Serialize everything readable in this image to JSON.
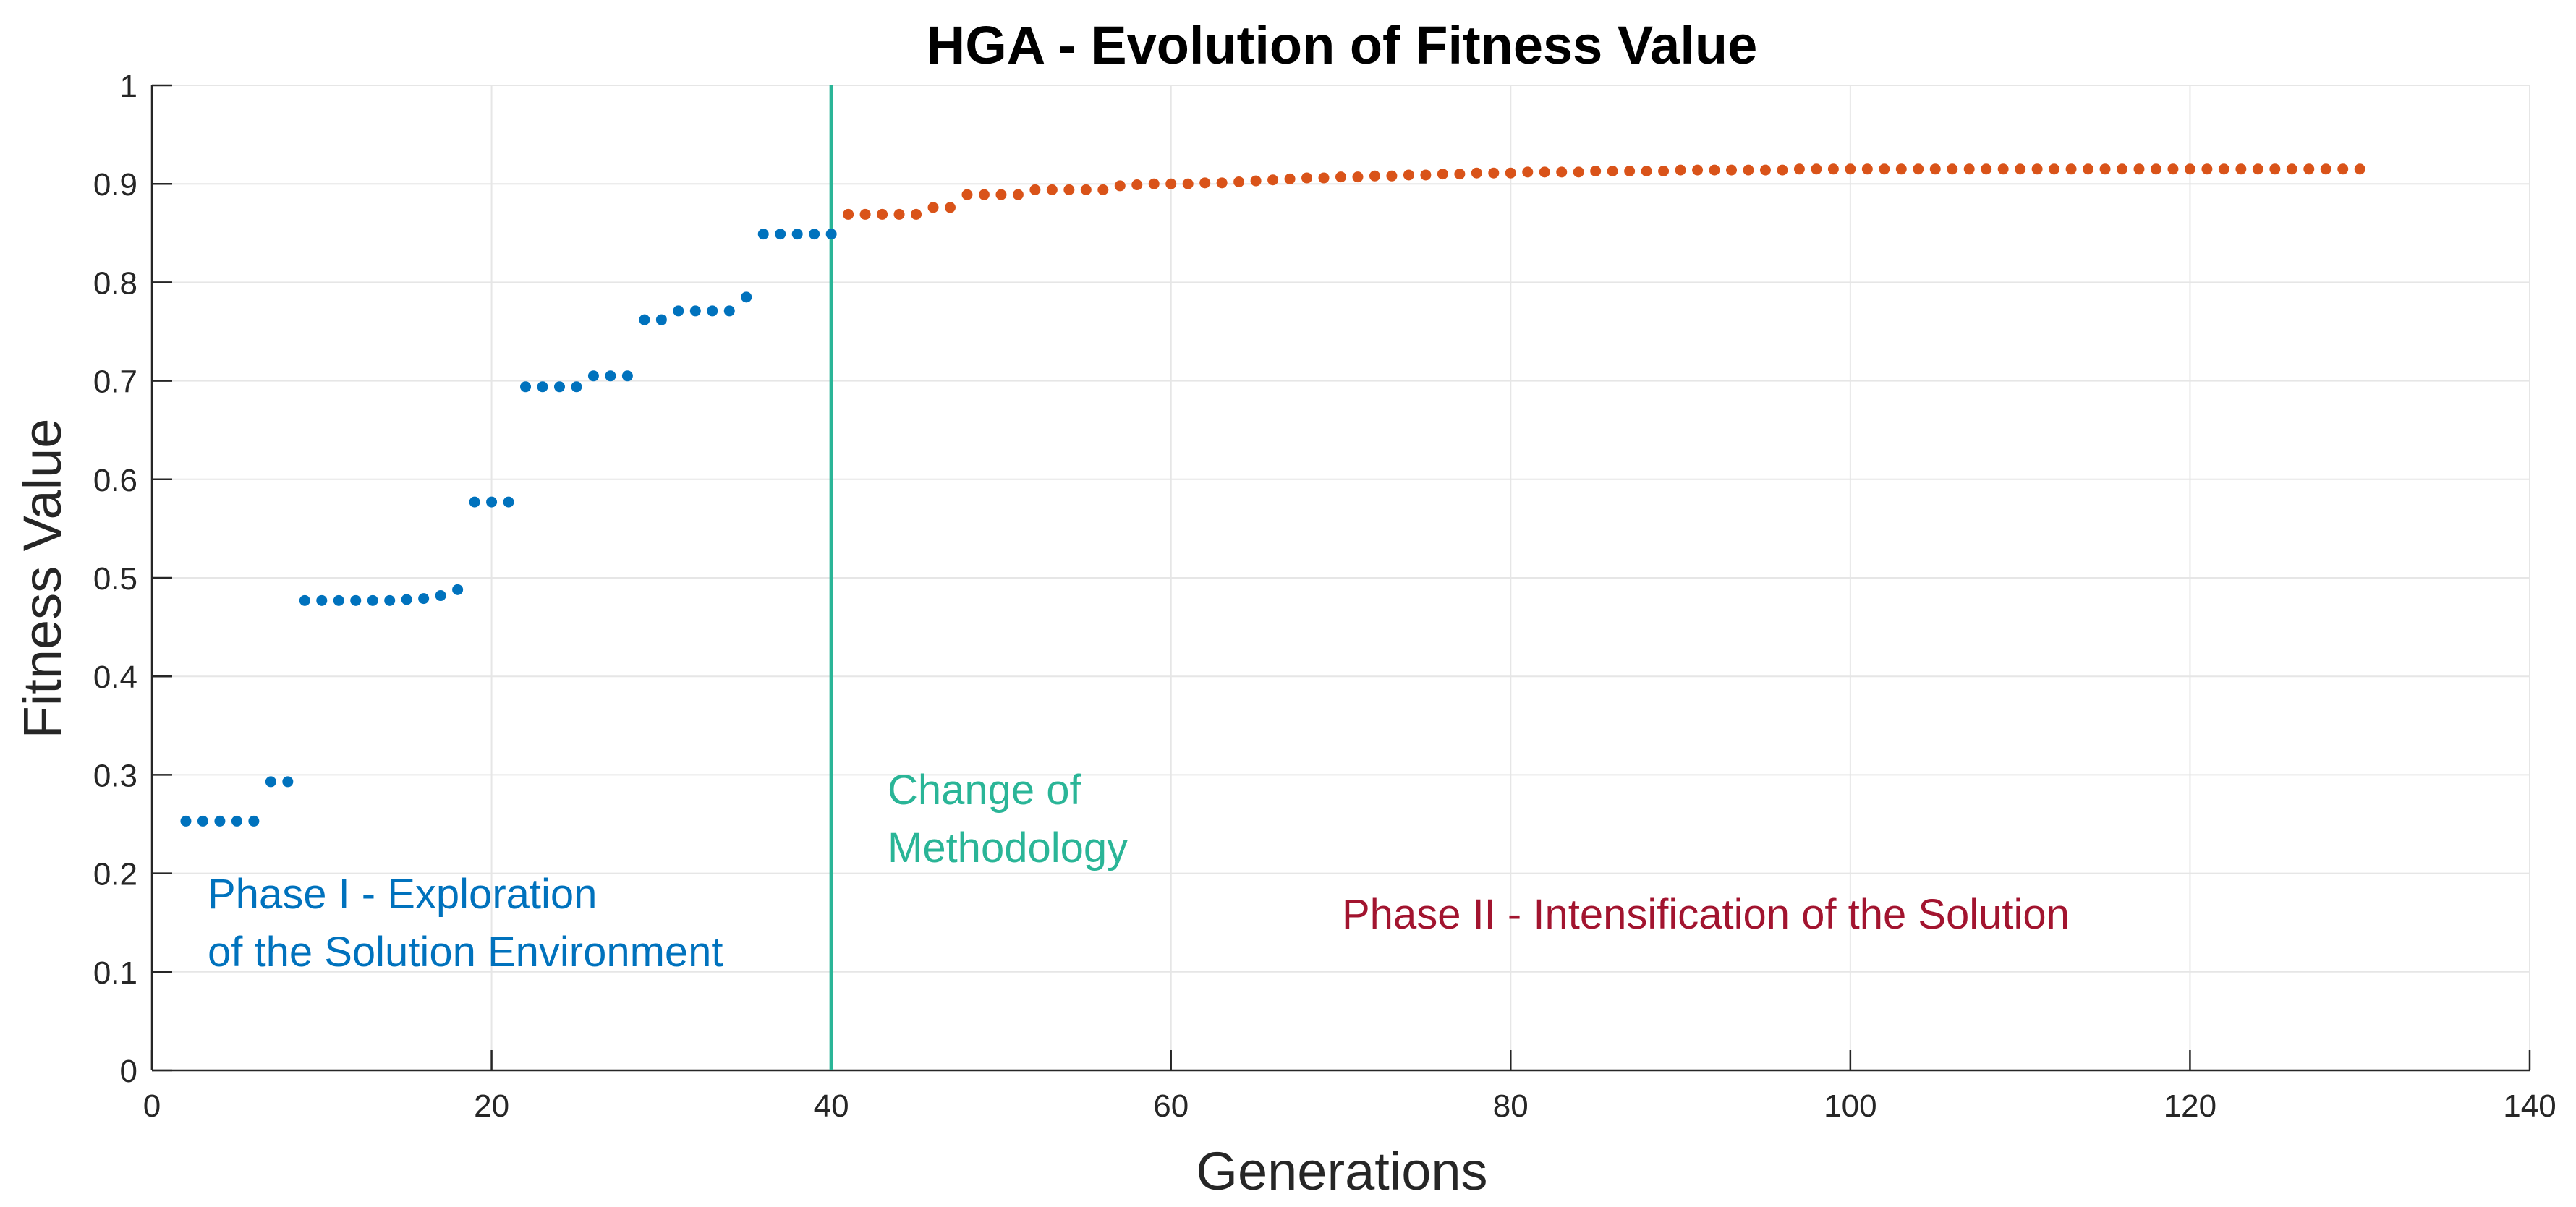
{
  "chart_data": {
    "type": "scatter",
    "title": "HGA - Evolution of Fitness Value",
    "xlabel": "Generations",
    "ylabel": "Fitness Value",
    "xlim": [
      0,
      140
    ],
    "ylim": [
      0,
      1
    ],
    "xticks": [
      "0",
      "20",
      "40",
      "60",
      "80",
      "100",
      "120",
      "140"
    ],
    "yticks": [
      "0",
      "0.1",
      "0.2",
      "0.3",
      "0.4",
      "0.5",
      "0.6",
      "0.7",
      "0.8",
      "0.9",
      "1"
    ],
    "grid": true,
    "colors": {
      "phase1": "#0072BD",
      "phase2": "#D95319",
      "divider": "#2AB597",
      "phase2_label": "#A2142F"
    },
    "series": [
      {
        "points": [
          [
            2,
            0.253
          ],
          [
            3,
            0.253
          ],
          [
            4,
            0.253
          ],
          [
            5,
            0.253
          ],
          [
            6,
            0.253
          ],
          [
            7,
            0.293
          ],
          [
            8,
            0.293
          ],
          [
            9,
            0.477
          ],
          [
            10,
            0.477
          ],
          [
            11,
            0.477
          ],
          [
            12,
            0.477
          ],
          [
            13,
            0.477
          ],
          [
            14,
            0.477
          ],
          [
            15,
            0.478
          ],
          [
            16,
            0.479
          ],
          [
            17,
            0.482
          ],
          [
            18,
            0.488
          ],
          [
            19,
            0.577
          ],
          [
            20,
            0.577
          ],
          [
            21,
            0.577
          ],
          [
            22,
            0.694
          ],
          [
            23,
            0.694
          ],
          [
            24,
            0.694
          ],
          [
            25,
            0.694
          ],
          [
            26,
            0.705
          ],
          [
            27,
            0.705
          ],
          [
            28,
            0.705
          ],
          [
            29,
            0.762
          ],
          [
            30,
            0.762
          ],
          [
            31,
            0.771
          ],
          [
            32,
            0.771
          ],
          [
            33,
            0.771
          ],
          [
            34,
            0.771
          ],
          [
            35,
            0.785
          ],
          [
            36,
            0.849
          ],
          [
            37,
            0.849
          ],
          [
            38,
            0.849
          ],
          [
            39,
            0.849
          ],
          [
            40,
            0.849
          ]
        ]
      },
      {
        "points": [
          [
            41,
            0.869
          ],
          [
            42,
            0.869
          ],
          [
            43,
            0.869
          ],
          [
            44,
            0.869
          ],
          [
            45,
            0.869
          ],
          [
            46,
            0.876
          ],
          [
            47,
            0.876
          ],
          [
            48,
            0.889
          ],
          [
            49,
            0.889
          ],
          [
            50,
            0.889
          ],
          [
            51,
            0.889
          ],
          [
            52,
            0.894
          ],
          [
            53,
            0.894
          ],
          [
            54,
            0.894
          ],
          [
            55,
            0.894
          ],
          [
            56,
            0.894
          ],
          [
            57,
            0.898
          ],
          [
            58,
            0.899
          ],
          [
            59,
            0.9
          ],
          [
            60,
            0.9
          ],
          [
            61,
            0.9
          ],
          [
            62,
            0.901
          ],
          [
            63,
            0.901
          ],
          [
            64,
            0.902
          ],
          [
            65,
            0.903
          ],
          [
            66,
            0.904
          ],
          [
            67,
            0.905
          ],
          [
            68,
            0.906
          ],
          [
            69,
            0.906
          ],
          [
            70,
            0.907
          ],
          [
            71,
            0.907
          ],
          [
            72,
            0.908
          ],
          [
            73,
            0.908
          ],
          [
            74,
            0.909
          ],
          [
            75,
            0.909
          ],
          [
            76,
            0.91
          ],
          [
            77,
            0.91
          ],
          [
            78,
            0.911
          ],
          [
            79,
            0.911
          ],
          [
            80,
            0.911
          ],
          [
            81,
            0.912
          ],
          [
            82,
            0.912
          ],
          [
            83,
            0.912
          ],
          [
            84,
            0.912
          ],
          [
            85,
            0.913
          ],
          [
            86,
            0.913
          ],
          [
            87,
            0.913
          ],
          [
            88,
            0.913
          ],
          [
            89,
            0.913
          ],
          [
            90,
            0.914
          ],
          [
            91,
            0.914
          ],
          [
            92,
            0.914
          ],
          [
            93,
            0.914
          ],
          [
            94,
            0.914
          ],
          [
            95,
            0.914
          ],
          [
            96,
            0.914
          ],
          [
            97,
            0.915
          ],
          [
            98,
            0.915
          ],
          [
            99,
            0.915
          ],
          [
            100,
            0.915
          ],
          [
            101,
            0.915
          ],
          [
            102,
            0.915
          ],
          [
            103,
            0.915
          ],
          [
            104,
            0.915
          ],
          [
            105,
            0.915
          ],
          [
            106,
            0.915
          ],
          [
            107,
            0.915
          ],
          [
            108,
            0.915
          ],
          [
            109,
            0.915
          ],
          [
            110,
            0.915
          ],
          [
            111,
            0.915
          ],
          [
            112,
            0.915
          ],
          [
            113,
            0.915
          ],
          [
            114,
            0.915
          ],
          [
            115,
            0.915
          ],
          [
            116,
            0.915
          ],
          [
            117,
            0.915
          ],
          [
            118,
            0.915
          ],
          [
            119,
            0.915
          ],
          [
            120,
            0.915
          ],
          [
            121,
            0.915
          ],
          [
            122,
            0.915
          ],
          [
            123,
            0.915
          ],
          [
            124,
            0.915
          ],
          [
            125,
            0.915
          ],
          [
            126,
            0.915
          ],
          [
            127,
            0.915
          ],
          [
            128,
            0.915
          ],
          [
            129,
            0.915
          ],
          [
            130,
            0.915
          ]
        ]
      }
    ],
    "vline": {
      "x": 40
    },
    "annotations": {
      "change_line1": "Change of",
      "change_line2": "Methodology",
      "phase1_line1": "Phase I - Exploration",
      "phase1_line2": "of the Solution Environment",
      "phase2": "Phase II - Intensification of the Solution"
    }
  }
}
